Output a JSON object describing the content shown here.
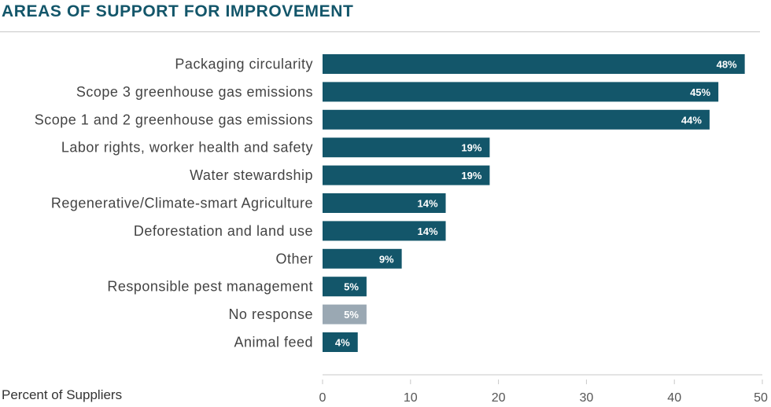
{
  "page_title": "AREAS OF SUPPORT FOR IMPROVEMENT",
  "chart_data": {
    "type": "bar",
    "orientation": "horizontal",
    "categories": [
      "Packaging circularity",
      "Scope 3 greenhouse gas emissions",
      "Scope 1 and 2 greenhouse gas emissions",
      "Labor rights, worker health and safety",
      "Water stewardship",
      "Regenerative/Climate-smart Agriculture",
      "Deforestation and land use",
      "Other",
      "Responsible pest management",
      "No response",
      "Animal feed"
    ],
    "values": [
      48,
      45,
      44,
      19,
      19,
      14,
      14,
      9,
      5,
      5,
      4
    ],
    "data_labels": [
      "48%",
      "45%",
      "44%",
      "19%",
      "19%",
      "14%",
      "14%",
      "9%",
      "5%",
      "5%",
      "4%"
    ],
    "xlabel": "Percent of Suppliers",
    "xlim": [
      0,
      50
    ],
    "xticks": [
      0,
      10,
      20,
      30,
      40,
      50
    ],
    "grid": false,
    "colors": {
      "bar": "#13566a",
      "muted_bar": "#9aa8b3",
      "muted_categories": [
        "No response"
      ],
      "label_text": "#ffffff",
      "category_text": "#444444",
      "axis": "#c8c8c8"
    }
  }
}
